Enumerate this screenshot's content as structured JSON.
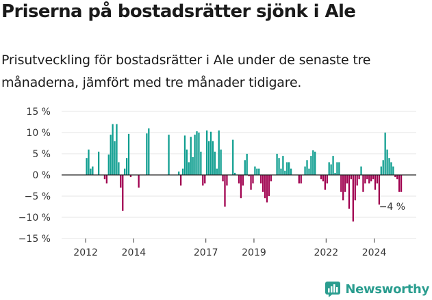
{
  "header": {
    "title": "Priserna på bostadsrätter sjönk i Ale",
    "subtitle": "Prisutveckling för bostadsrätter i Ale under de senaste tre månaderna, jämfört med tre månader tidigare."
  },
  "brand": {
    "name": "Newsworthy",
    "icon": "newsworthy-logo-icon",
    "color": "#2a9d8f"
  },
  "colors": {
    "positive": "#0f9e90",
    "negative": "#a0004f"
  },
  "chart_data": {
    "type": "bar",
    "title": "Priserna på bostadsrätter sjönk i Ale",
    "subtitle": "Prisutveckling för bostadsrätter i Ale under de senaste tre månaderna, jämfört med tre månader tidigare.",
    "xlabel": "",
    "ylabel": "",
    "ylim": [
      -15,
      15
    ],
    "yticks": [
      -15,
      -10,
      -5,
      0,
      5,
      10,
      15
    ],
    "ytick_labels": [
      "−15 %",
      "−10 %",
      "−5 %",
      "0 %",
      "5 %",
      "10 %",
      "15 %"
    ],
    "xrange": [
      2011,
      2025.75
    ],
    "xticks": [
      2012,
      2014,
      2017,
      2019,
      2022,
      2024
    ],
    "xtick_labels": [
      "2012",
      "2014",
      "2017",
      "2019",
      "2022",
      "2024"
    ],
    "grid": true,
    "last_value_label": "−4 %",
    "series": [
      {
        "values": [
          {
            "x": "2012-01",
            "y": 4
          },
          {
            "x": "2012-02",
            "y": 6
          },
          {
            "x": "2012-03",
            "y": 1.5
          },
          {
            "x": "2012-04",
            "y": 2
          },
          {
            "x": "2012-07",
            "y": 5.5
          },
          {
            "x": "2012-10",
            "y": -1
          },
          {
            "x": "2012-11",
            "y": -2
          },
          {
            "x": "2012-12",
            "y": 4.8
          },
          {
            "x": "2013-01",
            "y": 9.5
          },
          {
            "x": "2013-02",
            "y": 12
          },
          {
            "x": "2013-03",
            "y": 8
          },
          {
            "x": "2013-04",
            "y": 12
          },
          {
            "x": "2013-05",
            "y": 3
          },
          {
            "x": "2013-06",
            "y": -3
          },
          {
            "x": "2013-07",
            "y": -8.5
          },
          {
            "x": "2013-08",
            "y": 1.5
          },
          {
            "x": "2013-09",
            "y": 4
          },
          {
            "x": "2013-10",
            "y": 9.7
          },
          {
            "x": "2013-11",
            "y": -0.5
          },
          {
            "x": "2014-03",
            "y": -3
          },
          {
            "x": "2014-07",
            "y": 9.8
          },
          {
            "x": "2014-08",
            "y": 11
          },
          {
            "x": "2015-06",
            "y": 9.5
          },
          {
            "x": "2015-11",
            "y": 0.8
          },
          {
            "x": "2015-12",
            "y": -2.5
          },
          {
            "x": "2016-01",
            "y": 1.5
          },
          {
            "x": "2016-02",
            "y": 9.3
          },
          {
            "x": "2016-03",
            "y": 6
          },
          {
            "x": "2016-04",
            "y": 3
          },
          {
            "x": "2016-05",
            "y": 9
          },
          {
            "x": "2016-06",
            "y": 4.2
          },
          {
            "x": "2016-07",
            "y": 9.5
          },
          {
            "x": "2016-08",
            "y": 10.3
          },
          {
            "x": "2016-09",
            "y": 10
          },
          {
            "x": "2016-10",
            "y": 5.5
          },
          {
            "x": "2016-11",
            "y": -2.5
          },
          {
            "x": "2016-12",
            "y": -2
          },
          {
            "x": "2017-01",
            "y": 10.5
          },
          {
            "x": "2017-02",
            "y": 8
          },
          {
            "x": "2017-03",
            "y": 10.2
          },
          {
            "x": "2017-04",
            "y": 8
          },
          {
            "x": "2017-05",
            "y": 5.5
          },
          {
            "x": "2017-06",
            "y": 1.5
          },
          {
            "x": "2017-07",
            "y": 10.5
          },
          {
            "x": "2017-08",
            "y": 6
          },
          {
            "x": "2017-09",
            "y": -1.5
          },
          {
            "x": "2017-10",
            "y": -7.5
          },
          {
            "x": "2017-11",
            "y": -2.5
          },
          {
            "x": "2018-02",
            "y": 8.3
          },
          {
            "x": "2018-03",
            "y": 0.5
          },
          {
            "x": "2018-05",
            "y": -2
          },
          {
            "x": "2018-06",
            "y": -5.5
          },
          {
            "x": "2018-07",
            "y": -2.5
          },
          {
            "x": "2018-08",
            "y": 3.5
          },
          {
            "x": "2018-09",
            "y": 5
          },
          {
            "x": "2018-10",
            "y": -0.3
          },
          {
            "x": "2018-11",
            "y": -3.5
          },
          {
            "x": "2018-12",
            "y": -2
          },
          {
            "x": "2019-01",
            "y": 2
          },
          {
            "x": "2019-02",
            "y": 1.5
          },
          {
            "x": "2019-03",
            "y": 1.5
          },
          {
            "x": "2019-04",
            "y": -2
          },
          {
            "x": "2019-05",
            "y": -4
          },
          {
            "x": "2019-06",
            "y": -5.5
          },
          {
            "x": "2019-07",
            "y": -6.5
          },
          {
            "x": "2019-08",
            "y": -5
          },
          {
            "x": "2019-09",
            "y": -1.5
          },
          {
            "x": "2019-12",
            "y": 5
          },
          {
            "x": "2020-01",
            "y": 4
          },
          {
            "x": "2020-02",
            "y": 1.5
          },
          {
            "x": "2020-03",
            "y": 4.5
          },
          {
            "x": "2020-04",
            "y": 1
          },
          {
            "x": "2020-05",
            "y": 3
          },
          {
            "x": "2020-06",
            "y": 3
          },
          {
            "x": "2020-07",
            "y": 1.5
          },
          {
            "x": "2020-11",
            "y": -2
          },
          {
            "x": "2020-12",
            "y": -2
          },
          {
            "x": "2021-02",
            "y": 2
          },
          {
            "x": "2021-03",
            "y": 3.5
          },
          {
            "x": "2021-04",
            "y": 1.5
          },
          {
            "x": "2021-05",
            "y": 4.5
          },
          {
            "x": "2021-06",
            "y": 5.8
          },
          {
            "x": "2021-07",
            "y": 5.5
          },
          {
            "x": "2021-10",
            "y": -1
          },
          {
            "x": "2021-11",
            "y": -1.5
          },
          {
            "x": "2021-12",
            "y": -3.5
          },
          {
            "x": "2022-01",
            "y": -2
          },
          {
            "x": "2022-02",
            "y": 3
          },
          {
            "x": "2022-03",
            "y": 2.5
          },
          {
            "x": "2022-04",
            "y": 4.5
          },
          {
            "x": "2022-05",
            "y": 0.5
          },
          {
            "x": "2022-06",
            "y": 3
          },
          {
            "x": "2022-07",
            "y": 3
          },
          {
            "x": "2022-08",
            "y": -4
          },
          {
            "x": "2022-09",
            "y": -6
          },
          {
            "x": "2022-10",
            "y": -4
          },
          {
            "x": "2022-11",
            "y": -2
          },
          {
            "x": "2022-12",
            "y": -8
          },
          {
            "x": "2023-01",
            "y": -1
          },
          {
            "x": "2023-02",
            "y": -11
          },
          {
            "x": "2023-03",
            "y": -6
          },
          {
            "x": "2023-04",
            "y": -2.5
          },
          {
            "x": "2023-05",
            "y": -1
          },
          {
            "x": "2023-06",
            "y": 2
          },
          {
            "x": "2023-07",
            "y": -4
          },
          {
            "x": "2023-08",
            "y": -2
          },
          {
            "x": "2023-09",
            "y": -1
          },
          {
            "x": "2023-10",
            "y": -2
          },
          {
            "x": "2023-11",
            "y": -1.5
          },
          {
            "x": "2023-12",
            "y": -1
          },
          {
            "x": "2024-01",
            "y": -3.5
          },
          {
            "x": "2024-02",
            "y": -2
          },
          {
            "x": "2024-03",
            "y": -7
          },
          {
            "x": "2024-04",
            "y": 2
          },
          {
            "x": "2024-05",
            "y": 3.5
          },
          {
            "x": "2024-06",
            "y": 10
          },
          {
            "x": "2024-07",
            "y": 6
          },
          {
            "x": "2024-08",
            "y": 4
          },
          {
            "x": "2024-09",
            "y": 3
          },
          {
            "x": "2024-10",
            "y": 2
          },
          {
            "x": "2024-11",
            "y": -0.5
          },
          {
            "x": "2024-12",
            "y": -1
          },
          {
            "x": "2025-01",
            "y": -4
          },
          {
            "x": "2025-02",
            "y": -4
          }
        ]
      }
    ]
  }
}
